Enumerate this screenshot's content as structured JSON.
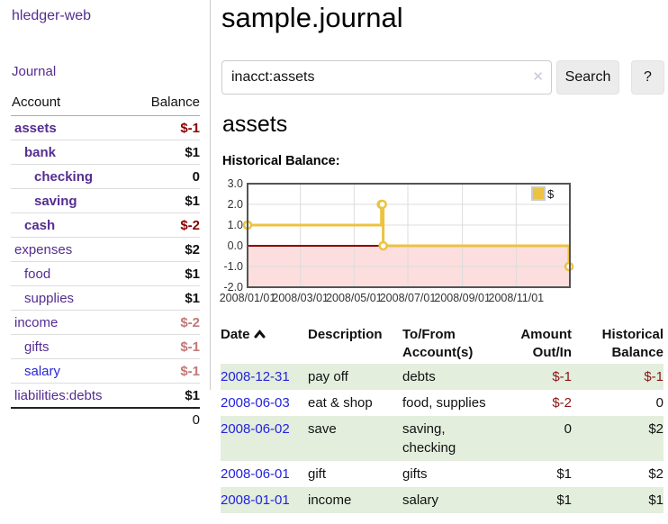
{
  "app": {
    "title": "hledger-web",
    "nav_journal": "Journal"
  },
  "sidebar": {
    "table_header": {
      "account": "Account",
      "balance": "Balance"
    },
    "accounts": [
      {
        "name": "assets",
        "balance": "$-1",
        "depth": 1,
        "emph": true,
        "link": "purple",
        "balance_tone": "neg-dark"
      },
      {
        "name": "bank",
        "balance": "$1",
        "depth": 2,
        "emph": true,
        "link": "purple",
        "balance_tone": ""
      },
      {
        "name": "checking",
        "balance": "0",
        "depth": 3,
        "emph": true,
        "link": "purple",
        "balance_tone": ""
      },
      {
        "name": "saving",
        "balance": "$1",
        "depth": 3,
        "emph": true,
        "link": "purple",
        "balance_tone": ""
      },
      {
        "name": "cash",
        "balance": "$-2",
        "depth": 2,
        "emph": true,
        "link": "purple",
        "balance_tone": "neg-dark"
      },
      {
        "name": "expenses",
        "balance": "$2",
        "depth": 1,
        "emph": false,
        "link": "purple",
        "balance_tone": ""
      },
      {
        "name": "food",
        "balance": "$1",
        "depth": 2,
        "emph": false,
        "link": "purple",
        "balance_tone": ""
      },
      {
        "name": "supplies",
        "balance": "$1",
        "depth": 2,
        "emph": false,
        "link": "purple",
        "balance_tone": ""
      },
      {
        "name": "income",
        "balance": "$-2",
        "depth": 1,
        "emph": false,
        "link": "purple",
        "balance_tone": "neg-light"
      },
      {
        "name": "gifts",
        "balance": "$-1",
        "depth": 2,
        "emph": false,
        "link": "purple",
        "balance_tone": "neg-light"
      },
      {
        "name": "salary",
        "balance": "$-1",
        "depth": 2,
        "emph": false,
        "link": "blue",
        "balance_tone": "neg-light"
      },
      {
        "name": "liabilities:debts",
        "balance": "$1",
        "depth": 1,
        "emph": false,
        "link": "purple",
        "balance_tone": ""
      }
    ],
    "total": "0"
  },
  "main": {
    "title": "sample.journal",
    "section_title": "assets",
    "chart_label": "Historical Balance:"
  },
  "search": {
    "value": "inacct:assets",
    "clear_icon": "cross-icon",
    "clear_glyph": "✕",
    "button_label": "Search",
    "help_label": "?"
  },
  "chart_data": {
    "type": "line",
    "step": true,
    "title": "Historical Balance:",
    "legend_label": "$",
    "legend_position": "top-right",
    "grid": true,
    "ylim": [
      -2,
      3
    ],
    "x_range_days": [
      0,
      366
    ],
    "series": [
      {
        "name": "$",
        "color": "#edc240",
        "points": [
          {
            "date": "2008-01-01",
            "day": 0,
            "value": 1
          },
          {
            "date": "2008-06-01",
            "day": 152,
            "value": 2
          },
          {
            "date": "2008-06-02",
            "day": 153,
            "value": 2
          },
          {
            "date": "2008-06-03",
            "day": 154,
            "value": 0
          },
          {
            "date": "2008-12-31",
            "day": 365,
            "value": -1
          }
        ]
      }
    ],
    "x_ticks": [
      {
        "day": 0,
        "label": "2008/01/01"
      },
      {
        "day": 60,
        "label": "2008/03/01"
      },
      {
        "day": 121,
        "label": "2008/05/01"
      },
      {
        "day": 182,
        "label": "2008/07/01"
      },
      {
        "day": 244,
        "label": "2008/09/01"
      },
      {
        "day": 305,
        "label": "2008/11/01"
      }
    ],
    "y_ticks": [
      {
        "value": 3,
        "label": "3.0"
      },
      {
        "value": 2,
        "label": "2.0"
      },
      {
        "value": 1,
        "label": "1.0"
      },
      {
        "value": 0,
        "label": "0.0"
      },
      {
        "value": -1,
        "label": "-1.0"
      },
      {
        "value": -2,
        "label": "-2.0"
      }
    ],
    "colors": {
      "line": "#edc240",
      "negative_fill": "#fcdede",
      "zero_line": "#8b0000",
      "grid": "#dcdcdc",
      "border": "#545454",
      "legend_box_border": "#cccccc"
    }
  },
  "table": {
    "sort": {
      "column": "Date",
      "direction": "asc"
    },
    "headers": [
      {
        "l1": "Date",
        "l2": ""
      },
      {
        "l1": "Description",
        "l2": ""
      },
      {
        "l1": "To/From",
        "l2": "Account(s)"
      },
      {
        "l1": "Amount",
        "l2": "Out/In"
      },
      {
        "l1": "Historical",
        "l2": "Balance"
      }
    ],
    "rows": [
      {
        "date": "2008-12-31",
        "description": "pay off",
        "accounts": "debts",
        "amount": "$-1",
        "amount_tone": "neg",
        "balance": "$-1",
        "balance_tone": "neg"
      },
      {
        "date": "2008-06-03",
        "description": "eat & shop",
        "accounts": "food, supplies",
        "amount": "$-2",
        "amount_tone": "neg",
        "balance": "0",
        "balance_tone": ""
      },
      {
        "date": "2008-06-02",
        "description": "save",
        "accounts": "saving, checking",
        "amount": "0",
        "amount_tone": "",
        "balance": "$2",
        "balance_tone": ""
      },
      {
        "date": "2008-06-01",
        "description": "gift",
        "accounts": "gifts",
        "amount": "$1",
        "amount_tone": "",
        "balance": "$2",
        "balance_tone": ""
      },
      {
        "date": "2008-01-01",
        "description": "income",
        "accounts": "salary",
        "amount": "$1",
        "amount_tone": "",
        "balance": "$1",
        "balance_tone": ""
      }
    ]
  }
}
